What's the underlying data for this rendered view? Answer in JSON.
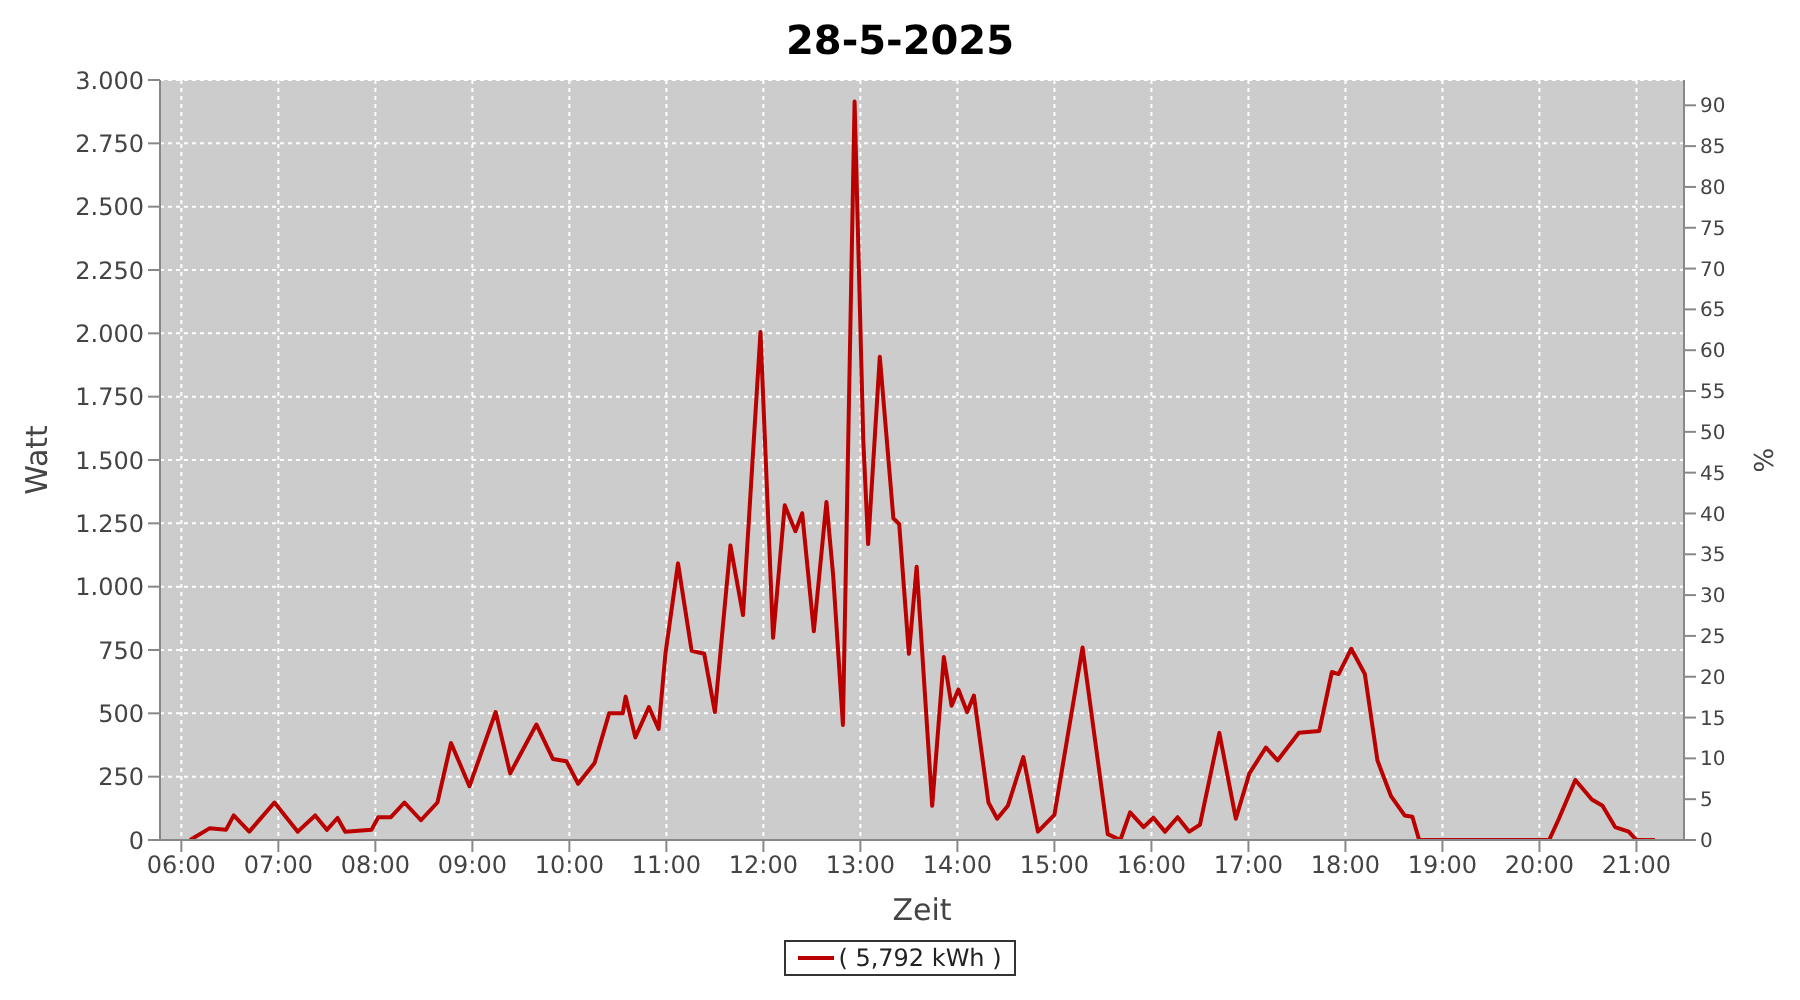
{
  "chart_data": {
    "type": "line",
    "title": "28-5-2025",
    "xlabel": "Zeit",
    "ylabel": "Watt",
    "y2label": "%",
    "xlim": [
      5.78,
      21.49
    ],
    "xticks": [
      {
        "value": 6,
        "label": "06:00"
      },
      {
        "value": 7,
        "label": "07:00"
      },
      {
        "value": 8,
        "label": "08:00"
      },
      {
        "value": 9,
        "label": "09:00"
      },
      {
        "value": 10,
        "label": "10:00"
      },
      {
        "value": 11,
        "label": "11:00"
      },
      {
        "value": 12,
        "label": "12:00"
      },
      {
        "value": 13,
        "label": "13:00"
      },
      {
        "value": 14,
        "label": "14:00"
      },
      {
        "value": 15,
        "label": "15:00"
      },
      {
        "value": 16,
        "label": "16:00"
      },
      {
        "value": 17,
        "label": "17:00"
      },
      {
        "value": 18,
        "label": "18:00"
      },
      {
        "value": 19,
        "label": "19:00"
      },
      {
        "value": 20,
        "label": "20:00"
      },
      {
        "value": 21,
        "label": "21:00"
      }
    ],
    "ylim": [
      0,
      3000
    ],
    "yticks": [
      0,
      250,
      500,
      750,
      {
        "value": 1000,
        "label": "1.000"
      },
      {
        "value": 1250,
        "label": "1.250"
      },
      {
        "value": 1500,
        "label": "1.500"
      },
      {
        "value": 1750,
        "label": "1.750"
      },
      {
        "value": 2000,
        "label": "2.000"
      },
      {
        "value": 2250,
        "label": "2.250"
      },
      {
        "value": 2500,
        "label": "2.500"
      },
      {
        "value": 2750,
        "label": "2.750"
      },
      {
        "value": 3000,
        "label": "3.000"
      }
    ],
    "y2lim": [
      0,
      93.1
    ],
    "y2ticks": [
      0,
      5,
      10,
      15,
      20,
      25,
      30,
      35,
      40,
      45,
      50,
      55,
      60,
      65,
      70,
      75,
      80,
      85,
      90
    ],
    "grid": true,
    "legend": "bottom",
    "marker": "none",
    "line_style": "solid",
    "series": [
      {
        "name": "( 5,792 kWh )",
        "color": "#bb0000",
        "x": [
          6.09,
          6.29,
          6.46,
          6.54,
          6.7,
          6.96,
          7.2,
          7.38,
          7.5,
          7.61,
          7.69,
          7.96,
          8.03,
          8.16,
          8.3,
          8.47,
          8.64,
          8.78,
          8.97,
          9.24,
          9.39,
          9.66,
          9.83,
          9.97,
          10.09,
          10.26,
          10.41,
          10.55,
          10.58,
          10.68,
          10.82,
          10.92,
          10.99,
          11.12,
          11.26,
          11.39,
          11.5,
          11.66,
          11.79,
          11.97,
          12.1,
          12.22,
          12.33,
          12.4,
          12.52,
          12.65,
          12.72,
          12.82,
          12.94,
          13.03,
          13.08,
          13.2,
          13.34,
          13.4,
          13.5,
          13.58,
          13.74,
          13.86,
          13.94,
          14.01,
          14.1,
          14.17,
          14.32,
          14.41,
          14.52,
          14.68,
          14.83,
          15.0,
          15.29,
          15.55,
          15.68,
          15.78,
          15.92,
          16.02,
          16.14,
          16.27,
          16.39,
          16.5,
          16.7,
          16.87,
          17.01,
          17.18,
          17.3,
          17.52,
          17.73,
          17.86,
          17.93,
          18.06,
          18.2,
          18.33,
          18.47,
          18.61,
          18.69,
          18.76,
          19.97,
          20.1,
          20.2,
          20.37,
          20.54,
          20.65,
          20.78,
          20.92,
          21.0,
          21.19
        ],
        "values": [
          0,
          46,
          40,
          97,
          33,
          148,
          33,
          97,
          40,
          87,
          33,
          40,
          90,
          90,
          148,
          78,
          148,
          383,
          212,
          505,
          263,
          456,
          320,
          311,
          222,
          304,
          500,
          500,
          566,
          405,
          525,
          438,
          734,
          1092,
          747,
          735,
          505,
          1163,
          888,
          2005,
          798,
          1321,
          1219,
          1290,
          824,
          1334,
          1041,
          454,
          2915,
          1576,
          1168,
          1908,
          1270,
          1247,
          735,
          1079,
          135,
          722,
          530,
          594,
          505,
          570,
          148,
          84,
          135,
          327,
          33,
          99,
          760,
          23,
          0,
          109,
          51,
          88,
          33,
          90,
          33,
          60,
          423,
          84,
          263,
          365,
          314,
          423,
          430,
          663,
          655,
          755,
          655,
          314,
          173,
          97,
          92,
          0,
          0,
          0,
          84,
          237,
          160,
          135,
          51,
          33,
          0,
          0
        ]
      }
    ]
  }
}
